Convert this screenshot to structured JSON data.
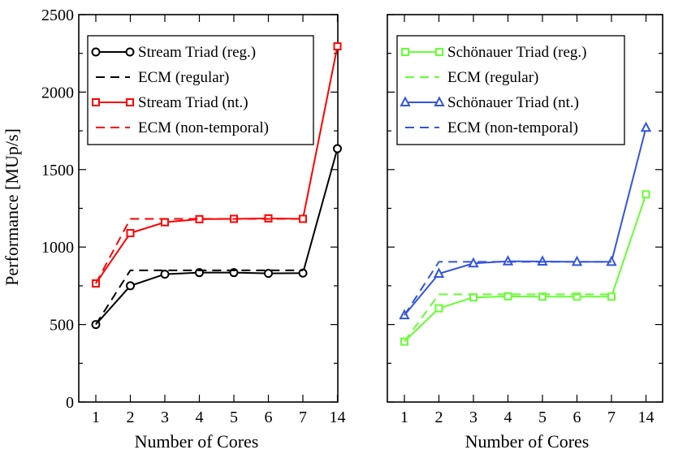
{
  "chart_data": [
    {
      "type": "line",
      "panel": "left",
      "xlabel": "Number of Cores",
      "ylabel": "Performance [MUp/s]",
      "categories": [
        "1",
        "2",
        "3",
        "4",
        "5",
        "6",
        "7",
        "14"
      ],
      "ylim": [
        0,
        2500
      ],
      "yticks": [
        0,
        500,
        1000,
        1500,
        2000,
        2500
      ],
      "legend_position": "top-left",
      "series": [
        {
          "name": "Stream Triad (reg.)",
          "color": "#000000",
          "style": "solid",
          "marker": "circle",
          "values": [
            500,
            750,
            825,
            835,
            835,
            830,
            832,
            1635
          ]
        },
        {
          "name": "ECM (regular)",
          "color": "#000000",
          "style": "dashed",
          "marker": "none",
          "values": [
            500,
            850,
            850,
            850,
            850,
            850,
            850,
            null
          ]
        },
        {
          "name": "Stream Triad (nt.)",
          "color": "#ff0000",
          "style": "solid",
          "marker": "square",
          "values": [
            765,
            1090,
            1160,
            1180,
            1182,
            1185,
            1182,
            2295
          ]
        },
        {
          "name": "ECM (non-temporal)",
          "color": "#ff0000",
          "style": "dashed",
          "marker": "none",
          "values": [
            765,
            1182,
            1182,
            1182,
            1182,
            1182,
            1182,
            null
          ]
        }
      ]
    },
    {
      "type": "line",
      "panel": "right",
      "xlabel": "Number of Cores",
      "ylabel": "",
      "categories": [
        "1",
        "2",
        "3",
        "4",
        "5",
        "6",
        "7",
        "14"
      ],
      "ylim": [
        0,
        2500
      ],
      "yticks": [
        0,
        500,
        1000,
        1500,
        2000,
        2500
      ],
      "legend_position": "top-left",
      "series": [
        {
          "name": "Schönauer Triad (reg.)",
          "color": "#66ff33",
          "style": "solid",
          "marker": "square",
          "values": [
            390,
            605,
            675,
            682,
            680,
            680,
            680,
            1340
          ]
        },
        {
          "name": "ECM (regular)",
          "color": "#66ff33",
          "style": "dashed",
          "marker": "none",
          "values": [
            390,
            695,
            695,
            695,
            695,
            695,
            695,
            null
          ]
        },
        {
          "name": "Schönauer Triad (nt.)",
          "color": "#3355dd",
          "style": "solid",
          "marker": "triangle",
          "values": [
            560,
            828,
            895,
            908,
            907,
            905,
            905,
            1770
          ]
        },
        {
          "name": "ECM (non-temporal)",
          "color": "#3355dd",
          "style": "dashed",
          "marker": "none",
          "values": [
            560,
            905,
            905,
            905,
            905,
            905,
            905,
            null
          ]
        }
      ]
    }
  ]
}
